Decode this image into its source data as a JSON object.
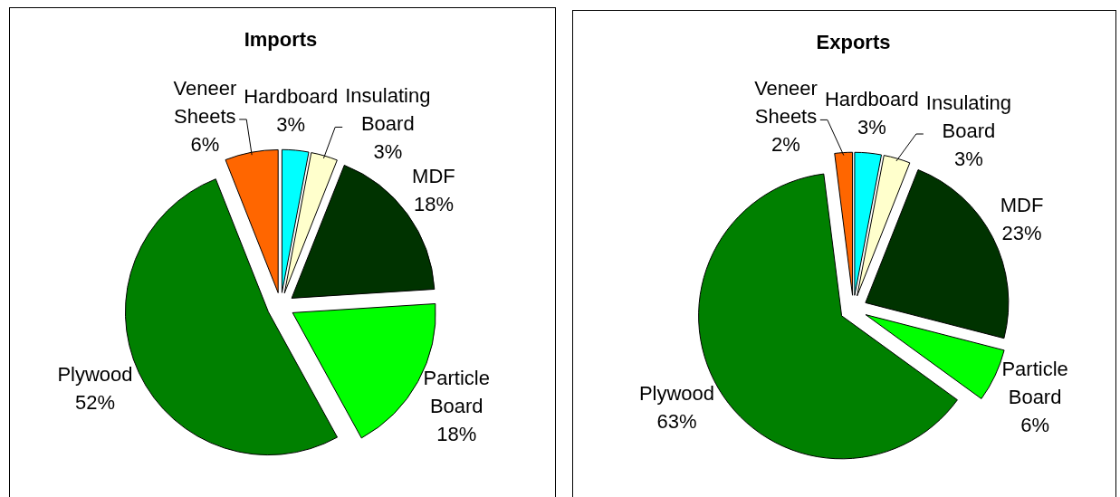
{
  "chart_data": [
    {
      "type": "pie",
      "title": "Imports",
      "categories": [
        "Hardboard",
        "Insulating Board",
        "MDF",
        "Particle Board",
        "Plywood",
        "Veneer Sheets"
      ],
      "values": [
        3,
        3,
        18,
        18,
        52,
        6
      ],
      "colors": [
        "#00ffff",
        "#ffffcc",
        "#003300",
        "#00ff00",
        "#008000",
        "#ff6600"
      ],
      "value_labels": [
        "3%",
        "3%",
        "18%",
        "18%",
        "52%",
        "6%"
      ]
    },
    {
      "type": "pie",
      "title": "Exports",
      "categories": [
        "Hardboard",
        "Insulating Board",
        "MDF",
        "Particle Board",
        "Plywood",
        "Veneer Sheets"
      ],
      "values": [
        3,
        3,
        23,
        6,
        63,
        2
      ],
      "colors": [
        "#00ffff",
        "#ffffcc",
        "#003300",
        "#00ff00",
        "#008000",
        "#ff6600"
      ],
      "value_labels": [
        "3%",
        "3%",
        "23%",
        "6%",
        "63%",
        "2%"
      ]
    }
  ]
}
